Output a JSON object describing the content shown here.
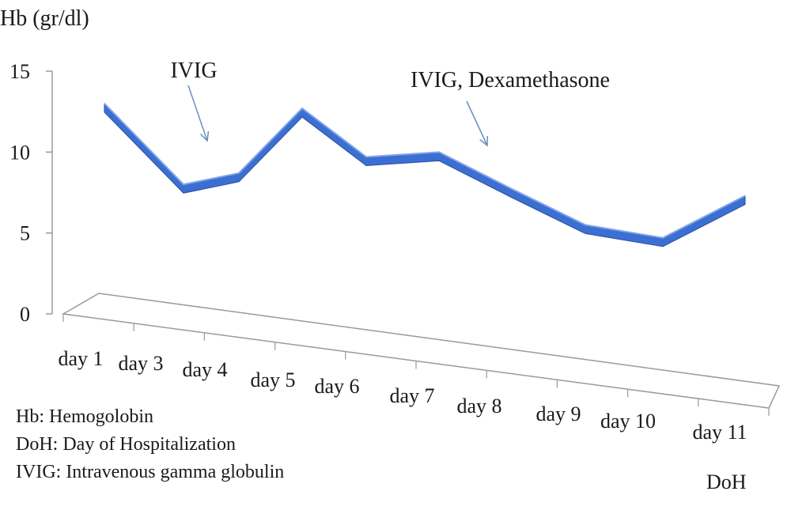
{
  "chart_data": {
    "type": "line",
    "ylabel": "Hb (gr/dl)",
    "xlabel": "DoH",
    "categories": [
      "day 1",
      "day 3",
      "day 4",
      "day 5",
      "day 6",
      "day 7",
      "day 8",
      "day 9",
      "day 10",
      "day 11"
    ],
    "series": [
      {
        "values": [
          13,
          8,
          8.7,
          12.7,
          9.7,
          10,
          7.7,
          5.5,
          4.7,
          7.3
        ]
      }
    ],
    "yticks": [
      0,
      5,
      10,
      15
    ],
    "ylim": [
      0,
      15
    ],
    "grid": false,
    "legend": "none",
    "style": "3d-ribbon",
    "line_color": "#3b6fd2",
    "annotations": [
      {
        "text": "IVIG",
        "category": "day 4"
      },
      {
        "text": "IVIG, Dexamethasone",
        "category": "day 8"
      }
    ],
    "footnotes": [
      "Hb: Hemogolobin",
      "DoH: Day of Hospitalization",
      "IVIG: Intravenous gamma globulin"
    ]
  }
}
